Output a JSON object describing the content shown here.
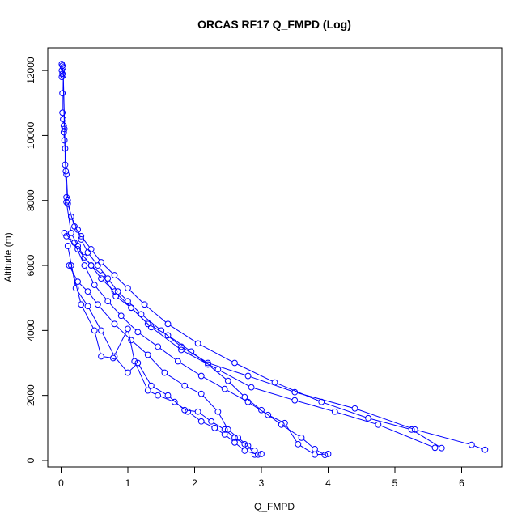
{
  "chart_data": {
    "type": "line",
    "title": "ORCAS RF17 Q_FMPD (Log)",
    "xlabel": "Q_FMPD",
    "ylabel": "Altitude (m)",
    "xlim": [
      -0.2,
      6.6
    ],
    "ylim": [
      -200,
      12700
    ],
    "xticks": [
      0,
      1,
      2,
      3,
      4,
      5,
      6
    ],
    "yticks": [
      0,
      2000,
      4000,
      6000,
      8000,
      10000,
      12000
    ],
    "xtick_labels": [
      "0",
      "1",
      "2",
      "3",
      "4",
      "5",
      "6"
    ],
    "ytick_labels": [
      "0",
      "2000",
      "4000",
      "6000",
      "8000",
      "10000",
      "12000"
    ],
    "grid": false,
    "marker": "open-circle",
    "line_color": "#0000ff",
    "series": [
      {
        "x": [
          0.01,
          0.01,
          0.02,
          0.01,
          0.02,
          0.02,
          0.03,
          0.04,
          0.04,
          0.05,
          0.06,
          0.06,
          0.07,
          0.08,
          0.1,
          0.15,
          0.25,
          0.3,
          0.4,
          0.55,
          0.7,
          0.85,
          1.0,
          1.2,
          1.5,
          1.8,
          2.2,
          2.8,
          3.5,
          4.4,
          5.3,
          6.15,
          6.35
        ],
        "y": [
          12200,
          12000,
          11900,
          11800,
          11300,
          10700,
          10500,
          10300,
          10100,
          9850,
          9600,
          9100,
          8900,
          8800,
          8000,
          7500,
          7100,
          6800,
          6400,
          6000,
          5600,
          5200,
          4900,
          4500,
          4000,
          3500,
          3000,
          2600,
          2100,
          1600,
          950,
          480,
          330
        ]
      },
      {
        "x": [
          0.02,
          0.03,
          0.05,
          0.08,
          0.1,
          0.2,
          0.3,
          0.45,
          0.6,
          0.8,
          1.0,
          1.25,
          1.6,
          2.05,
          2.6,
          3.2,
          3.9,
          4.6,
          5.25,
          5.7
        ],
        "y": [
          12150,
          11850,
          10200,
          8100,
          7900,
          7200,
          6900,
          6500,
          6100,
          5700,
          5300,
          4800,
          4200,
          3600,
          3000,
          2400,
          1800,
          1300,
          950,
          380
        ]
      },
      {
        "x": [
          0.03,
          0.08,
          0.15,
          0.25,
          0.35,
          0.45,
          0.6,
          0.8,
          1.05,
          1.35,
          1.8,
          2.35,
          2.85,
          3.5,
          4.1,
          4.75,
          5.6
        ],
        "y": [
          12100,
          7950,
          7000,
          6600,
          6250,
          6000,
          5600,
          5200,
          4700,
          4100,
          3400,
          2800,
          2250,
          1850,
          1500,
          1100,
          390
        ]
      },
      {
        "x": [
          0.05,
          0.2,
          0.35,
          0.5,
          0.7,
          0.9,
          1.15,
          1.45,
          1.75,
          2.1,
          2.45,
          2.8,
          3.1,
          3.35,
          3.55,
          3.8,
          4.0
        ],
        "y": [
          7000,
          6700,
          6000,
          5400,
          4900,
          4450,
          3950,
          3500,
          3050,
          2600,
          2200,
          1800,
          1400,
          1150,
          500,
          180,
          200
        ]
      },
      {
        "x": [
          0.08,
          0.25,
          0.45,
          0.62,
          0.82,
          1.05,
          1.3,
          1.6,
          1.95,
          2.2,
          2.5,
          2.75,
          3.0,
          3.3,
          3.6,
          3.8,
          3.95
        ],
        "y": [
          6900,
          6500,
          6000,
          5700,
          5050,
          4700,
          4200,
          3850,
          3350,
          2950,
          2450,
          1950,
          1550,
          1100,
          700,
          350,
          170
        ]
      },
      {
        "x": [
          0.1,
          0.22,
          0.4,
          0.6,
          0.8,
          1.0,
          1.15,
          1.35,
          1.6,
          1.85,
          2.05,
          2.25,
          2.45,
          2.6,
          2.75,
          2.9,
          3.0
        ],
        "y": [
          6600,
          5300,
          4750,
          4000,
          3200,
          2700,
          3000,
          2300,
          2000,
          1550,
          1500,
          1200,
          950,
          700,
          500,
          300,
          200
        ]
      },
      {
        "x": [
          0.15,
          0.3,
          0.5,
          0.6,
          0.78,
          1.0,
          1.1,
          1.3,
          1.45,
          1.7,
          1.9,
          2.1,
          2.3,
          2.45,
          2.6,
          2.75,
          2.95
        ],
        "y": [
          6000,
          4800,
          4000,
          3200,
          3150,
          4050,
          3050,
          2150,
          2000,
          1800,
          1500,
          1200,
          1000,
          800,
          550,
          300,
          180
        ]
      },
      {
        "x": [
          0.12,
          0.25,
          0.4,
          0.55,
          0.8,
          1.05,
          1.3,
          1.55,
          1.85,
          2.1,
          2.35,
          2.5,
          2.65,
          2.8,
          2.9
        ],
        "y": [
          6000,
          5500,
          5200,
          4800,
          4200,
          3700,
          3250,
          2700,
          2300,
          2050,
          1500,
          950,
          700,
          450,
          180
        ]
      }
    ]
  }
}
